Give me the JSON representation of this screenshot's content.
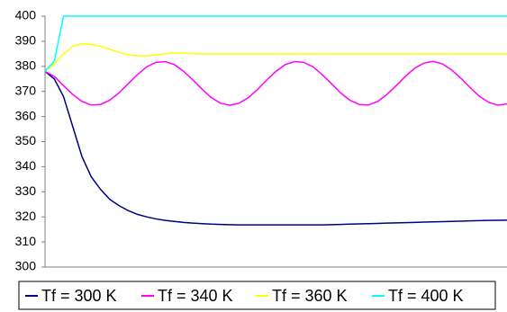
{
  "chart_data": {
    "type": "line",
    "x": [
      0,
      1,
      2,
      3,
      4,
      5,
      6,
      7,
      8,
      9,
      10,
      11,
      12,
      13,
      14,
      15,
      16,
      17,
      18,
      19,
      20,
      21,
      22,
      23,
      24,
      25,
      26,
      27,
      28,
      29,
      30,
      31,
      32,
      33,
      34,
      35,
      36,
      37,
      38,
      39,
      40,
      41,
      42,
      43,
      44,
      45,
      46,
      47,
      48,
      49,
      50
    ],
    "xlim": [
      0,
      50
    ],
    "ylim": [
      300,
      400
    ],
    "yticks": [
      300,
      310,
      320,
      330,
      340,
      350,
      360,
      370,
      380,
      390,
      400
    ],
    "grid": false,
    "legend": "bottom",
    "series": [
      {
        "name": "Tf = 300 K",
        "color": "#000080",
        "values": [
          378,
          375,
          368,
          356,
          344,
          336,
          331,
          327,
          324.5,
          322.5,
          321,
          320,
          319.2,
          318.6,
          318.2,
          317.8,
          317.5,
          317.3,
          317.1,
          317,
          316.9,
          316.8,
          316.8,
          316.8,
          316.8,
          316.8,
          316.8,
          316.8,
          316.8,
          316.8,
          316.8,
          316.9,
          317,
          317.1,
          317.2,
          317.3,
          317.4,
          317.5,
          317.6,
          317.7,
          317.8,
          317.9,
          318,
          318.1,
          318.2,
          318.3,
          318.4,
          318.5,
          318.6,
          318.65,
          318.7
        ]
      },
      {
        "name": "Tf = 340 K",
        "color": "#ff00ff",
        "values": [
          378,
          376,
          372.3,
          368.8,
          366,
          364.6,
          364.8,
          366.5,
          369.4,
          373.1,
          376.7,
          379.8,
          381.6,
          381.9,
          380.7,
          378,
          374.6,
          370.9,
          367.5,
          365.3,
          364.5,
          365.3,
          367.5,
          370.8,
          374.6,
          378,
          380.7,
          381.9,
          381.6,
          379.8,
          376.7,
          373.1,
          369.4,
          366.5,
          364.8,
          364.6,
          366,
          368.8,
          372.3,
          376,
          379.2,
          381.3,
          382,
          381,
          378.6,
          375.3,
          371.6,
          368.1,
          365.7,
          364.5,
          365
        ]
      },
      {
        "name": "Tf = 360 K",
        "color": "#ffff00",
        "values": [
          378,
          381,
          385,
          388,
          389,
          388.7,
          388,
          386.8,
          385.6,
          384.6,
          384.2,
          384.2,
          384.6,
          385,
          385.3,
          385.3,
          385,
          385,
          385,
          385,
          385,
          385,
          385,
          385,
          385,
          385,
          385,
          385,
          385,
          385,
          385,
          385,
          385,
          385,
          385,
          385,
          385,
          385,
          385,
          385,
          385,
          385,
          385,
          385,
          385,
          385,
          385,
          385,
          385,
          385,
          385
        ]
      },
      {
        "name": "Tf = 400 K",
        "color": "#00ffff",
        "values": [
          378,
          382,
          400,
          400,
          400,
          400,
          400,
          400,
          400,
          400,
          400,
          400,
          400,
          400,
          400,
          400,
          400,
          400,
          400,
          400,
          400,
          400,
          400,
          400,
          400,
          400,
          400,
          400,
          400,
          400,
          400,
          400,
          400,
          400,
          400,
          400,
          400,
          400,
          400,
          400,
          400,
          400,
          400,
          400,
          400,
          400,
          400,
          400,
          400,
          400,
          400
        ]
      }
    ]
  }
}
